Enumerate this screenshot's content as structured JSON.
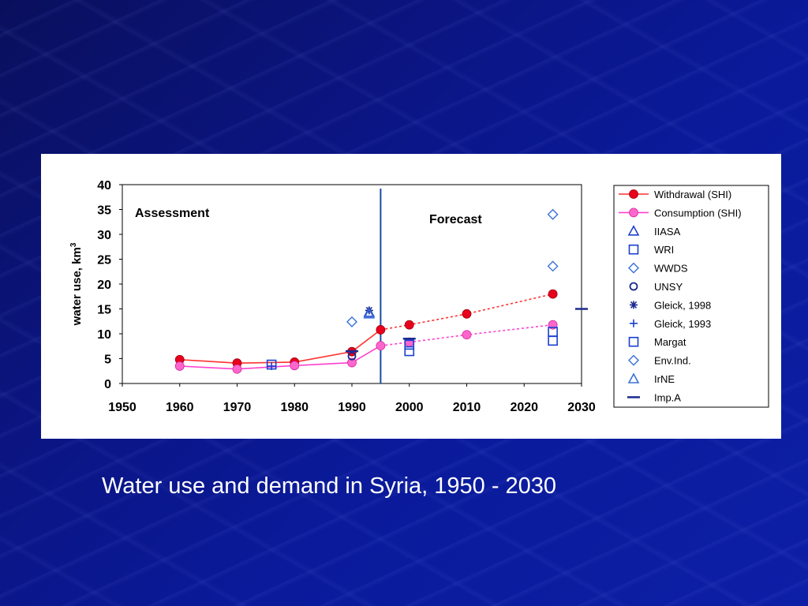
{
  "slide": {
    "caption": "Water use and demand in Syria, 1950 - 2030"
  },
  "chart_data": {
    "type": "scatter",
    "ylabel": "water use, km",
    "ylabel_sup": "3",
    "xlim": [
      1950,
      2030
    ],
    "ylim": [
      0,
      40
    ],
    "x_ticks": [
      1950,
      1960,
      1970,
      1980,
      1990,
      2000,
      2010,
      2020,
      2030
    ],
    "y_ticks": [
      0,
      5,
      10,
      15,
      20,
      25,
      30,
      35,
      40
    ],
    "annotations": [
      {
        "text": "Assessment"
      },
      {
        "text": "Forecast"
      }
    ],
    "divider_x": 1995,
    "series": [
      {
        "name": "Withdrawal (SHI)",
        "marker": "filled-circle",
        "color": "#e8001c",
        "line_color": "#ff3030",
        "points": [
          [
            1960,
            4.8
          ],
          [
            1970,
            4.1
          ],
          [
            1980,
            4.3
          ],
          [
            1990,
            6.4
          ],
          [
            1995,
            10.8
          ],
          [
            2000,
            11.8
          ],
          [
            2010,
            14.0
          ],
          [
            2025,
            18.0
          ]
        ],
        "solid_until": 1995
      },
      {
        "name": "Consumption (SHI)",
        "marker": "filled-circle",
        "color": "#ff66cc",
        "line_color": "#ff40d0",
        "points": [
          [
            1960,
            3.5
          ],
          [
            1970,
            2.9
          ],
          [
            1980,
            3.6
          ],
          [
            1990,
            4.2
          ],
          [
            1995,
            7.6
          ],
          [
            2000,
            8.3
          ],
          [
            2010,
            9.8
          ],
          [
            2025,
            11.8
          ]
        ],
        "solid_until": 1995
      },
      {
        "name": "IIASA",
        "marker": "triangle",
        "color": "#1a3fd0",
        "points": [
          [
            1993,
            14.3
          ]
        ]
      },
      {
        "name": "WRI",
        "marker": "square",
        "color": "#1a3fd0",
        "points": [
          [
            1976,
            3.8
          ],
          [
            2000,
            7.8
          ]
        ]
      },
      {
        "name": "WWDS",
        "marker": "diamond",
        "color": "#3a70d8",
        "points": [
          [
            2025,
            23.6
          ]
        ]
      },
      {
        "name": "UNSY",
        "marker": "circle",
        "color": "#1a2a90",
        "points": [
          [
            1990,
            5.5
          ]
        ]
      },
      {
        "name": "Gleick, 1998",
        "marker": "asterisk",
        "color": "#1a2a90",
        "points": [
          [
            1993,
            14.7
          ]
        ]
      },
      {
        "name": "Gleick, 1993",
        "marker": "plus",
        "color": "#1a3fd0",
        "points": [
          [
            1976,
            3.5
          ]
        ]
      },
      {
        "name": "Margat",
        "marker": "square",
        "color": "#1a3fd0",
        "points": [
          [
            2000,
            6.5
          ],
          [
            2025,
            8.6
          ],
          [
            2025,
            10.4
          ]
        ]
      },
      {
        "name": "Env.Ind.",
        "marker": "diamond",
        "color": "#3a70d8",
        "points": [
          [
            1990,
            12.4
          ],
          [
            2025,
            34.0
          ]
        ]
      },
      {
        "name": "IrNE",
        "marker": "triangle",
        "color": "#3a70d8",
        "points": [
          [
            1993,
            14.0
          ]
        ]
      },
      {
        "name": "Imp.A",
        "marker": "dash",
        "color": "#1a2a90",
        "points": [
          [
            2000,
            9.0
          ],
          [
            2030,
            15.0
          ],
          [
            1990,
            6.5
          ]
        ]
      }
    ]
  }
}
